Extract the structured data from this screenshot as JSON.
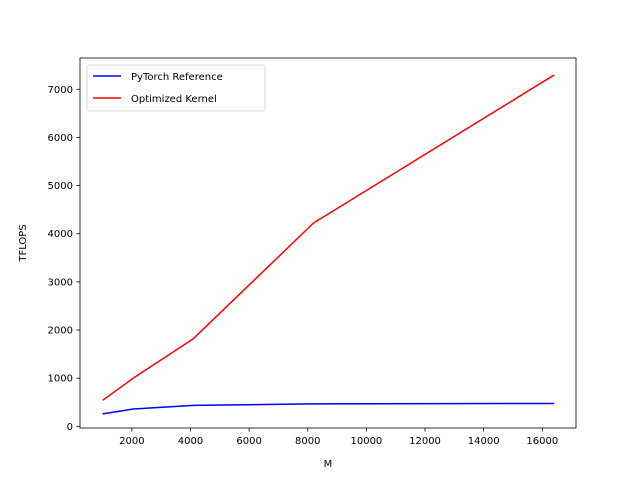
{
  "chart_data": {
    "type": "line",
    "title": "",
    "xlabel": "M",
    "ylabel": "TFLOPS",
    "xlim": [
      230,
      17150
    ],
    "ylim": [
      -35,
      7650
    ],
    "xticks": [
      2000,
      4000,
      6000,
      8000,
      10000,
      12000,
      14000,
      16000
    ],
    "yticks": [
      0,
      1000,
      2000,
      3000,
      4000,
      5000,
      6000,
      7000
    ],
    "legend_position": "upper-left",
    "grid": false,
    "series": [
      {
        "name": "PyTorch Reference",
        "color": "#0000ff",
        "x": [
          1024,
          2048,
          4096,
          8192,
          16384
        ],
        "y": [
          260,
          360,
          435,
          465,
          475
        ]
      },
      {
        "name": "Optimized Kernel",
        "color": "#ff0000",
        "x": [
          1024,
          2048,
          4096,
          8192,
          16384
        ],
        "y": [
          550,
          1000,
          1820,
          4220,
          7290
        ]
      }
    ]
  }
}
